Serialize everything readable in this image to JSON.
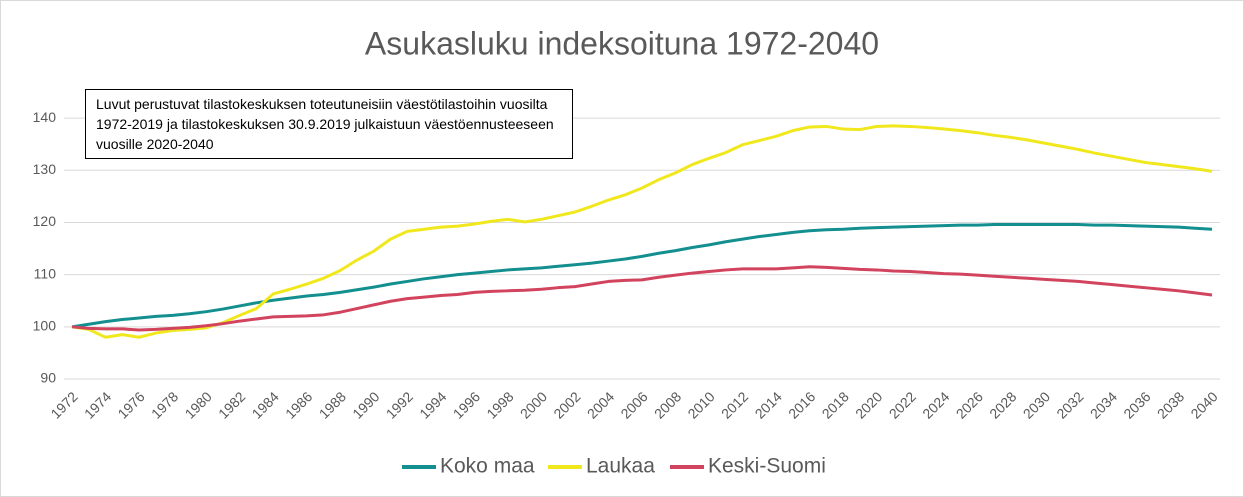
{
  "chart_data": {
    "type": "line",
    "title": "Asukasluku indeksoituna 1972-2040",
    "annotation": "Luvut perustuvat tilastokeskuksen toteutuneisiin väestötilastoihin vuosilta 1972-2019 ja tilastokeskuksen 30.9.2019 julkaistuun väestöennusteeseen vuosille 2020-2040",
    "x": [
      1972,
      1973,
      1974,
      1975,
      1976,
      1977,
      1978,
      1979,
      1980,
      1981,
      1982,
      1983,
      1984,
      1985,
      1986,
      1987,
      1988,
      1989,
      1990,
      1991,
      1992,
      1993,
      1994,
      1995,
      1996,
      1997,
      1998,
      1999,
      2000,
      2001,
      2002,
      2003,
      2004,
      2005,
      2006,
      2007,
      2008,
      2009,
      2010,
      2011,
      2012,
      2013,
      2014,
      2015,
      2016,
      2017,
      2018,
      2019,
      2020,
      2021,
      2022,
      2023,
      2024,
      2025,
      2026,
      2027,
      2028,
      2029,
      2030,
      2031,
      2032,
      2033,
      2034,
      2035,
      2036,
      2037,
      2038,
      2039,
      2040
    ],
    "series": [
      {
        "name": "Koko maa",
        "color": "#138f8f",
        "values": [
          100,
          100.5,
          101,
          101.4,
          101.7,
          102,
          102.2,
          102.5,
          102.9,
          103.4,
          104,
          104.6,
          105.1,
          105.5,
          105.9,
          106.2,
          106.6,
          107.1,
          107.6,
          108.2,
          108.7,
          109.2,
          109.6,
          110,
          110.3,
          110.6,
          110.9,
          111.1,
          111.3,
          111.6,
          111.9,
          112.2,
          112.6,
          113,
          113.5,
          114.1,
          114.6,
          115.2,
          115.7,
          116.3,
          116.8,
          117.3,
          117.7,
          118.1,
          118.4,
          118.6,
          118.7,
          118.9,
          119,
          119.1,
          119.2,
          119.3,
          119.4,
          119.5,
          119.5,
          119.6,
          119.6,
          119.6,
          119.6,
          119.6,
          119.6,
          119.5,
          119.5,
          119.4,
          119.3,
          119.2,
          119.1,
          118.9,
          118.7
        ]
      },
      {
        "name": "Laukaa",
        "color": "#f0e81c",
        "values": [
          100,
          99.5,
          98,
          98.5,
          98,
          98.8,
          99.3,
          99.5,
          99.8,
          100.8,
          102.2,
          103.5,
          106.3,
          107.2,
          108.2,
          109.3,
          110.8,
          112.8,
          114.5,
          116.8,
          118.3,
          118.7,
          119.1,
          119.3,
          119.7,
          120.2,
          120.6,
          120.1,
          120.6,
          121.3,
          122,
          123.1,
          124.3,
          125.3,
          126.6,
          128.2,
          129.5,
          131.1,
          132.3,
          133.4,
          134.9,
          135.7,
          136.5,
          137.6,
          138.3,
          138.4,
          137.9,
          137.8,
          138.4,
          138.5,
          138.4,
          138.2,
          137.9,
          137.6,
          137.2,
          136.7,
          136.3,
          135.8,
          135.2,
          134.6,
          134,
          133.3,
          132.7,
          132.1,
          131.5,
          131.1,
          130.7,
          130.3,
          129.8
        ]
      },
      {
        "name": "Keski-Suomi",
        "color": "#d2435e",
        "values": [
          100,
          99.7,
          99.6,
          99.6,
          99.4,
          99.5,
          99.7,
          99.9,
          100.2,
          100.6,
          101.1,
          101.5,
          101.9,
          102,
          102.1,
          102.3,
          102.8,
          103.5,
          104.2,
          104.9,
          105.4,
          105.7,
          106,
          106.2,
          106.6,
          106.8,
          106.9,
          107,
          107.2,
          107.5,
          107.7,
          108.2,
          108.7,
          108.9,
          109,
          109.5,
          109.9,
          110.3,
          110.6,
          110.9,
          111.1,
          111.1,
          111.1,
          111.3,
          111.5,
          111.4,
          111.2,
          111,
          110.9,
          110.7,
          110.6,
          110.4,
          110.2,
          110.1,
          109.9,
          109.7,
          109.5,
          109.3,
          109.1,
          108.9,
          108.7,
          108.4,
          108.1,
          107.8,
          107.5,
          107.2,
          106.9,
          106.5,
          106.1
        ]
      }
    ],
    "xlim": [
      1972,
      2040
    ],
    "xticks": [
      1972,
      1974,
      1976,
      1978,
      1980,
      1982,
      1984,
      1986,
      1988,
      1990,
      1992,
      1994,
      1996,
      1998,
      2000,
      2002,
      2004,
      2006,
      2008,
      2010,
      2012,
      2014,
      2016,
      2018,
      2020,
      2022,
      2024,
      2026,
      2028,
      2030,
      2032,
      2034,
      2036,
      2038,
      2040
    ],
    "ylim": [
      90,
      145
    ],
    "yticks": [
      90,
      100,
      110,
      120,
      130,
      140
    ],
    "grid": true,
    "legend": "bottom"
  }
}
